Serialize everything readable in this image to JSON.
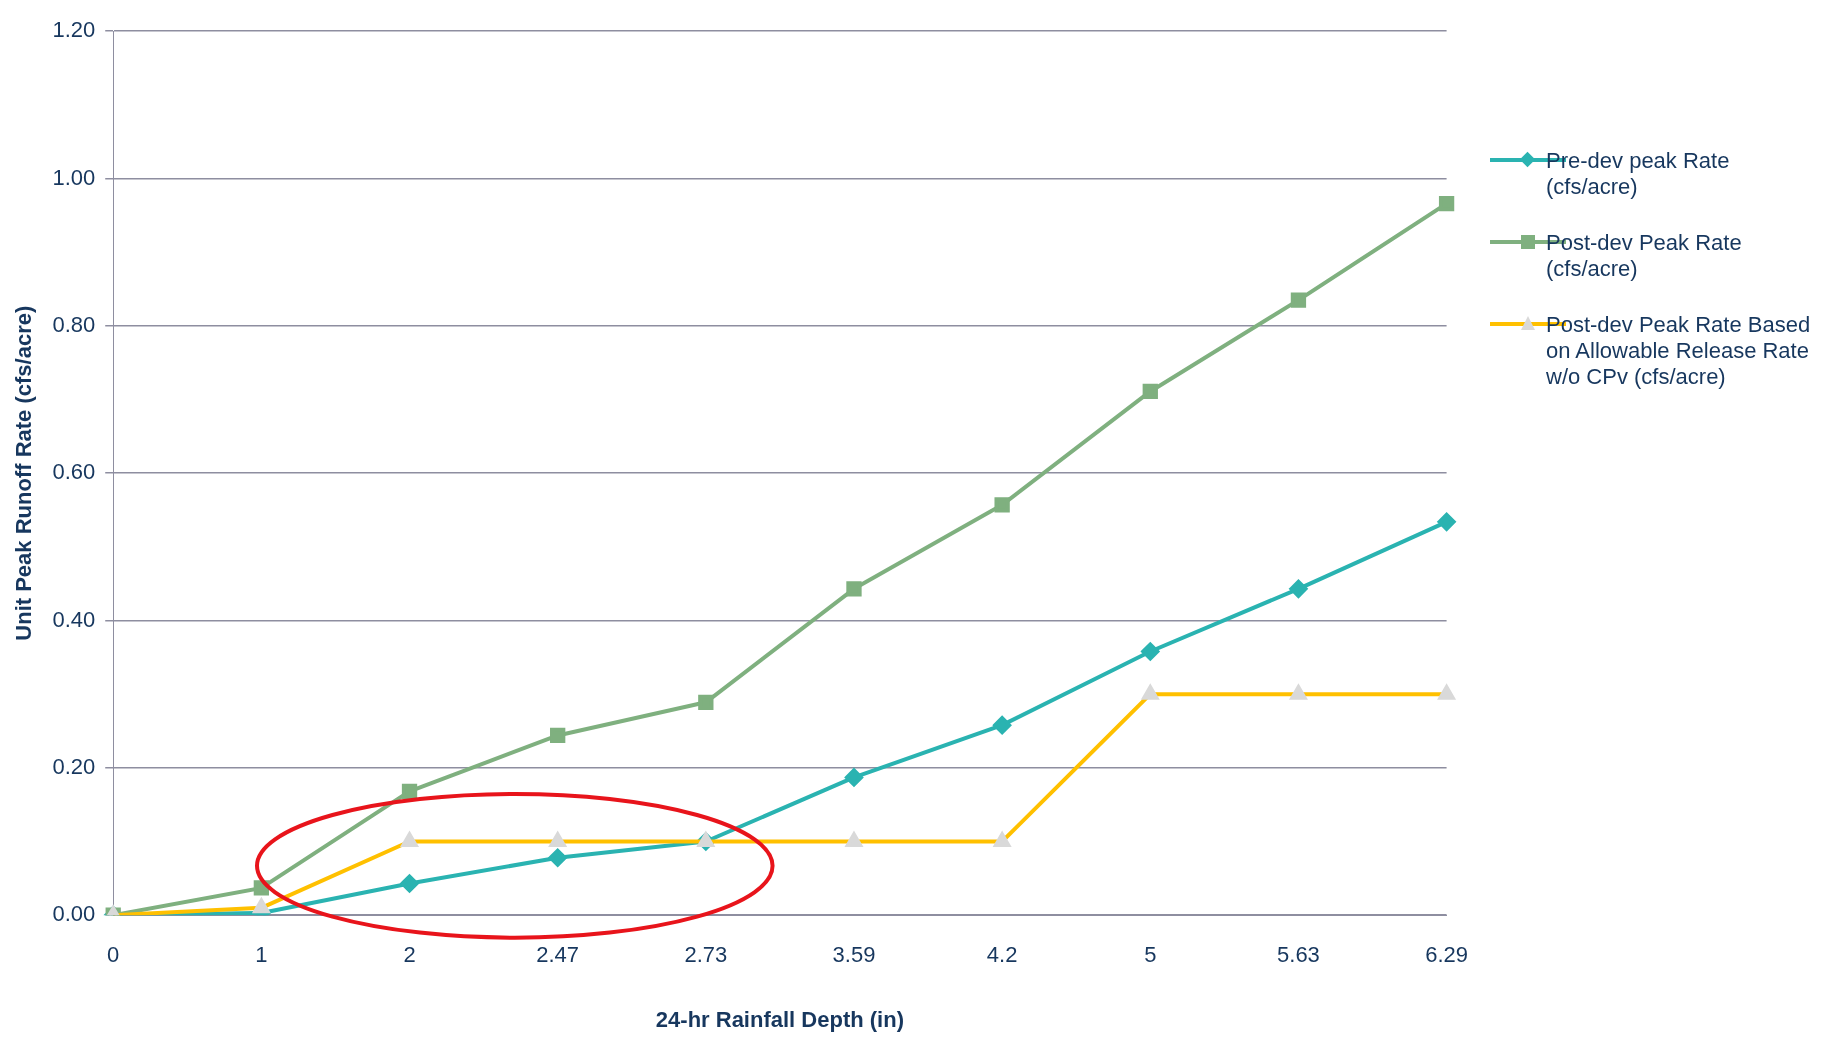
{
  "chart_data": {
    "type": "line",
    "xlabel": "24-hr Rainfall Depth (in)",
    "ylabel": "Unit Peak Runoff Rate (cfs/acre)",
    "categories": [
      "0",
      "1",
      "2",
      "2.47",
      "2.73",
      "3.59",
      "4.2",
      "5",
      "5.63",
      "6.29"
    ],
    "series": [
      {
        "name": "Pre-dev peak Rate (cfs/acre)",
        "color": "#2ab3b1",
        "marker": "diamond",
        "values": [
          0,
          0.003,
          0.043,
          0.078,
          0.1,
          0.187,
          0.258,
          0.358,
          0.443,
          0.534
        ]
      },
      {
        "name": "Post-dev Peak Rate (cfs/acre)",
        "color": "#7fb07f",
        "marker": "square",
        "values": [
          0,
          0.037,
          0.168,
          0.244,
          0.289,
          0.443,
          0.557,
          0.711,
          0.835,
          0.966
        ]
      },
      {
        "name": "Post-dev Peak Rate Based on Allowable Release Rate w/o CPv (cfs/acre)",
        "color": "#ffc000",
        "marker": "triangle",
        "values": [
          0,
          0.01,
          0.1,
          0.1,
          0.1,
          0.1,
          0.1,
          0.3,
          0.3,
          0.3
        ]
      }
    ],
    "ylim": [
      0,
      1.2
    ],
    "yticks": [
      {
        "value": 0,
        "label": "0.00"
      },
      {
        "value": 0.2,
        "label": "0.20"
      },
      {
        "value": 0.4,
        "label": "0.40"
      },
      {
        "value": 0.6,
        "label": "0.60"
      },
      {
        "value": 0.8,
        "label": "0.80"
      },
      {
        "value": 1.0,
        "label": "1.00"
      },
      {
        "value": 1.2,
        "label": "1.20"
      }
    ],
    "grid": "y",
    "legend": "right"
  }
}
